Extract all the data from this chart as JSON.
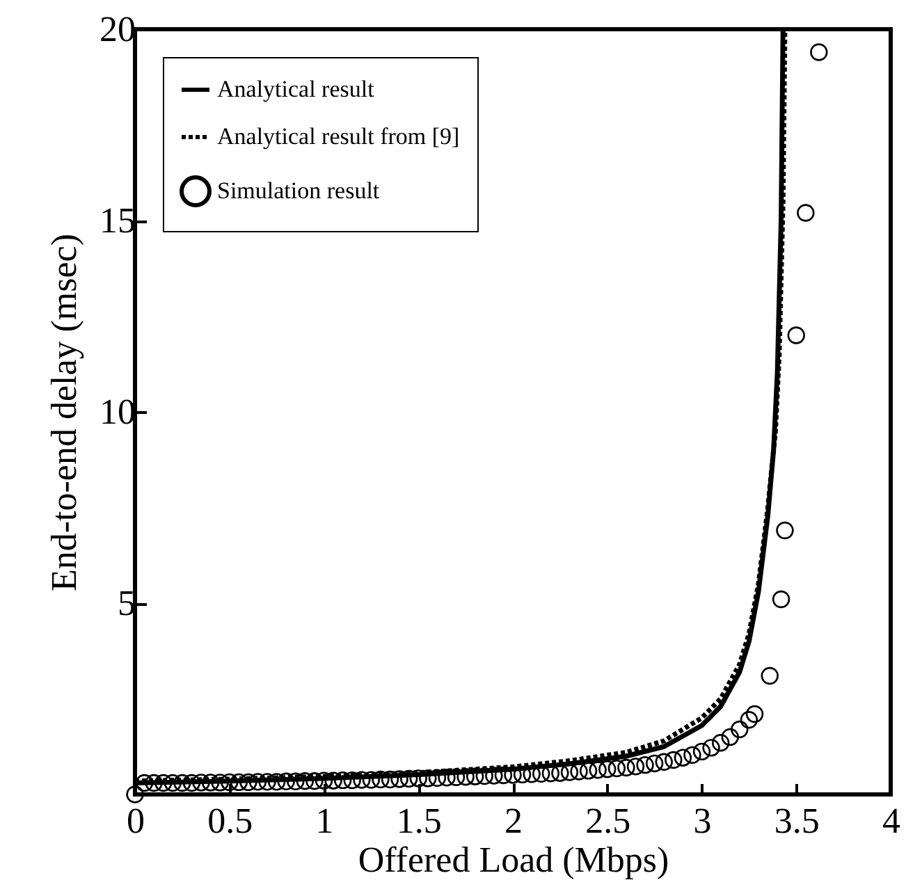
{
  "chart_data": {
    "type": "line",
    "xlabel": "Offered Load (Mbps)",
    "ylabel": "End-to-end delay (msec)",
    "xlim": [
      0,
      4
    ],
    "ylim": [
      0,
      20
    ],
    "xticks": [
      0,
      0.5,
      1,
      1.5,
      2,
      2.5,
      3,
      3.5,
      4
    ],
    "yticks": [
      5,
      10,
      15,
      20
    ],
    "legend": "top left",
    "grid": false,
    "series": [
      {
        "name": "Analytical result",
        "color": "#000000",
        "line_style": "solid",
        "marker": "none",
        "x": [
          0,
          0.5,
          1,
          1.5,
          2,
          2.3,
          2.6,
          2.8,
          3,
          3.1,
          3.2,
          3.25,
          3.3,
          3.35,
          3.38,
          3.4,
          3.42,
          3.43
        ],
        "values": [
          0.3,
          0.35,
          0.42,
          0.52,
          0.66,
          0.8,
          1.0,
          1.25,
          1.8,
          2.3,
          3.2,
          4,
          5.3,
          7.3,
          9,
          11,
          15,
          20
        ]
      },
      {
        "name": "Analytical result from [9]",
        "color": "#000000",
        "line_style": "dotted",
        "marker": "none",
        "x": [
          0,
          0.5,
          1,
          1.5,
          2,
          2.3,
          2.6,
          2.8,
          3,
          3.1,
          3.2,
          3.25,
          3.3,
          3.35,
          3.39,
          3.41,
          3.43,
          3.44
        ],
        "values": [
          0.35,
          0.4,
          0.47,
          0.57,
          0.72,
          0.88,
          1.1,
          1.4,
          2.0,
          2.5,
          3.4,
          4.2,
          5.5,
          7.5,
          9.5,
          11.5,
          15.5,
          20
        ]
      },
      {
        "name": "Simulation result",
        "type": "scatter",
        "color": "#000000",
        "marker": "circle",
        "x": [
          0,
          0.05,
          0.1,
          0.15,
          0.2,
          0.25,
          0.3,
          0.35,
          0.4,
          0.45,
          0.5,
          0.55,
          0.6,
          0.65,
          0.7,
          0.75,
          0.8,
          0.85,
          0.9,
          0.95,
          1,
          1.05,
          1.1,
          1.15,
          1.2,
          1.25,
          1.3,
          1.35,
          1.4,
          1.45,
          1.5,
          1.55,
          1.6,
          1.65,
          1.7,
          1.75,
          1.8,
          1.85,
          1.9,
          1.95,
          2,
          2.05,
          2.1,
          2.15,
          2.2,
          2.25,
          2.3,
          2.35,
          2.4,
          2.45,
          2.5,
          2.55,
          2.6,
          2.65,
          2.7,
          2.75,
          2.8,
          2.85,
          2.9,
          2.95,
          3,
          3.05,
          3.1,
          3.15,
          3.2,
          3.25,
          3.28,
          3.36,
          3.42,
          3.44,
          3.5,
          3.55,
          3.62
        ],
        "values": [
          0,
          0.3,
          0.3,
          0.3,
          0.3,
          0.3,
          0.3,
          0.31,
          0.31,
          0.31,
          0.32,
          0.32,
          0.32,
          0.33,
          0.33,
          0.33,
          0.34,
          0.34,
          0.35,
          0.35,
          0.36,
          0.36,
          0.37,
          0.37,
          0.38,
          0.38,
          0.39,
          0.39,
          0.4,
          0.41,
          0.42,
          0.42,
          0.43,
          0.44,
          0.45,
          0.46,
          0.47,
          0.48,
          0.49,
          0.5,
          0.51,
          0.52,
          0.53,
          0.54,
          0.55,
          0.56,
          0.58,
          0.6,
          0.62,
          0.64,
          0.66,
          0.68,
          0.7,
          0.73,
          0.77,
          0.81,
          0.85,
          0.9,
          0.96,
          1.03,
          1.12,
          1.22,
          1.35,
          1.5,
          1.7,
          1.95,
          2.1,
          3.1,
          5.1,
          6.9,
          12,
          15.2,
          19.4
        ]
      }
    ]
  }
}
